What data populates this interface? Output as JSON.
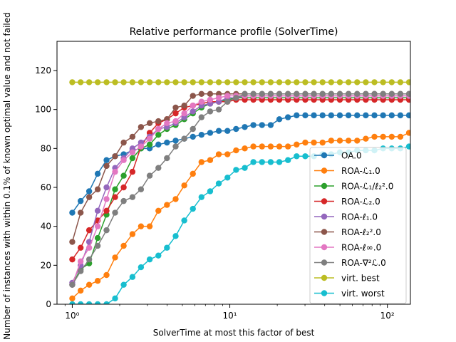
{
  "chart_data": {
    "type": "line",
    "title": "Relative performance profile (SolverTime)",
    "xlabel": "SolverTime at most this factor of best",
    "ylabel": "Number of instances with within 0.1% of known optimal value and not failed",
    "xscale": "log",
    "xlim": [
      0.8,
      140
    ],
    "ylim": [
      0,
      135
    ],
    "xticks": [
      {
        "value": 1,
        "label": "10⁰"
      },
      {
        "value": 10,
        "label": "10¹"
      },
      {
        "value": 100,
        "label": "10²"
      }
    ],
    "yticks": [
      0,
      20,
      40,
      60,
      80,
      100,
      120
    ],
    "grid": false,
    "legend_position": "lower right",
    "x": [
      1.0,
      1.13,
      1.28,
      1.45,
      1.65,
      1.87,
      2.12,
      2.41,
      2.73,
      3.1,
      3.52,
      3.99,
      4.53,
      5.14,
      5.83,
      6.61,
      7.5,
      8.51,
      9.66,
      10.96,
      12.44,
      14.11,
      16.01,
      18.17,
      20.62,
      23.39,
      26.54,
      30.12,
      34.17,
      38.78,
      44.0,
      49.93,
      56.65,
      64.28,
      72.94,
      82.77,
      93.92,
      106.57,
      120.93,
      137.22
    ],
    "series": [
      {
        "name": "OA.0",
        "color": "#1f77b4",
        "values": [
          47,
          53,
          58,
          67,
          74,
          76,
          77,
          79,
          80,
          80,
          82,
          83,
          84,
          85,
          86,
          87,
          88,
          89,
          89,
          90,
          91,
          92,
          92,
          92,
          95,
          96,
          97,
          97,
          97,
          97,
          97,
          97,
          97,
          97,
          97,
          97,
          97,
          97,
          97,
          97
        ]
      },
      {
        "name": "ROA-ℒ₁.0",
        "color": "#ff7f0e",
        "values": [
          3,
          7,
          10,
          12,
          15,
          24,
          30,
          36,
          40,
          40,
          48,
          51,
          54,
          61,
          67,
          73,
          74,
          77,
          77,
          79,
          80,
          81,
          81,
          81,
          81,
          81,
          82,
          83,
          83,
          83,
          84,
          84,
          84,
          84,
          85,
          86,
          86,
          86,
          86,
          88
        ]
      },
      {
        "name": "ROA-ℒ₁/ℓ₂².0",
        "color": "#2ca02c",
        "values": [
          10,
          18,
          21,
          34,
          46,
          59,
          66,
          75,
          80,
          82,
          87,
          90,
          92,
          95,
          98,
          101,
          103,
          104,
          105,
          106,
          106,
          106,
          106,
          106,
          106,
          106,
          106,
          106,
          106,
          106,
          106,
          106,
          106,
          106,
          106,
          106,
          106,
          106,
          106,
          106
        ]
      },
      {
        "name": "ROA-ℒ₂.0",
        "color": "#d62728",
        "values": [
          23,
          29,
          38,
          43,
          48,
          55,
          60,
          68,
          81,
          88,
          93,
          95,
          98,
          101,
          102,
          103,
          104,
          104,
          104,
          105,
          105,
          105,
          105,
          105,
          105,
          105,
          105,
          105,
          105,
          105,
          105,
          105,
          105,
          105,
          105,
          105,
          105,
          105,
          105,
          105
        ]
      },
      {
        "name": "ROA-ℓ₁.0",
        "color": "#9467bd",
        "values": [
          11,
          20,
          32,
          48,
          60,
          70,
          75,
          80,
          83,
          86,
          90,
          91,
          93,
          96,
          99,
          102,
          103,
          104,
          106,
          106,
          107,
          107,
          107,
          107,
          107,
          107,
          107,
          107,
          107,
          107,
          107,
          107,
          107,
          107,
          107,
          107,
          107,
          107,
          107,
          107
        ]
      },
      {
        "name": "ROA-ℓ₂².0",
        "color": "#8c564b",
        "values": [
          32,
          47,
          55,
          59,
          71,
          76,
          83,
          86,
          91,
          93,
          94,
          95,
          101,
          102,
          107,
          108,
          108,
          108,
          108,
          108,
          108,
          108,
          108,
          108,
          108,
          108,
          108,
          108,
          108,
          108,
          108,
          108,
          108,
          108,
          108,
          108,
          108,
          108,
          108,
          108
        ]
      },
      {
        "name": "ROA-ℓ∞.0",
        "color": "#e377c2",
        "values": [
          10,
          22,
          29,
          40,
          54,
          68,
          74,
          78,
          81,
          85,
          90,
          93,
          94,
          98,
          102,
          104,
          105,
          106,
          107,
          107,
          107,
          107,
          107,
          107,
          107,
          107,
          107,
          107,
          107,
          107,
          107,
          107,
          107,
          107,
          107,
          107,
          107,
          107,
          107,
          107
        ]
      },
      {
        "name": "ROA-∇²ℒ.0",
        "color": "#7f7f7f",
        "values": [
          10,
          17,
          23,
          30,
          38,
          47,
          53,
          55,
          59,
          66,
          70,
          75,
          81,
          85,
          90,
          96,
          99,
          100,
          104,
          106,
          108,
          108,
          108,
          108,
          108,
          108,
          108,
          108,
          108,
          108,
          108,
          108,
          108,
          108,
          108,
          108,
          108,
          108,
          108,
          108
        ]
      },
      {
        "name": "virt. best",
        "color": "#bcbd22",
        "values": [
          114,
          114,
          114,
          114,
          114,
          114,
          114,
          114,
          114,
          114,
          114,
          114,
          114,
          114,
          114,
          114,
          114,
          114,
          114,
          114,
          114,
          114,
          114,
          114,
          114,
          114,
          114,
          114,
          114,
          114,
          114,
          114,
          114,
          114,
          114,
          114,
          114,
          114,
          114,
          114
        ]
      },
      {
        "name": "virt. worst",
        "color": "#17becf",
        "values": [
          0,
          0,
          0,
          0,
          0,
          3,
          10,
          14,
          19,
          23,
          25,
          29,
          35,
          43,
          49,
          55,
          58,
          62,
          65,
          69,
          70,
          73,
          73,
          73,
          73,
          74,
          76,
          76,
          76,
          77,
          77,
          78,
          78,
          79,
          79,
          79,
          80,
          80,
          80,
          81
        ]
      }
    ]
  }
}
